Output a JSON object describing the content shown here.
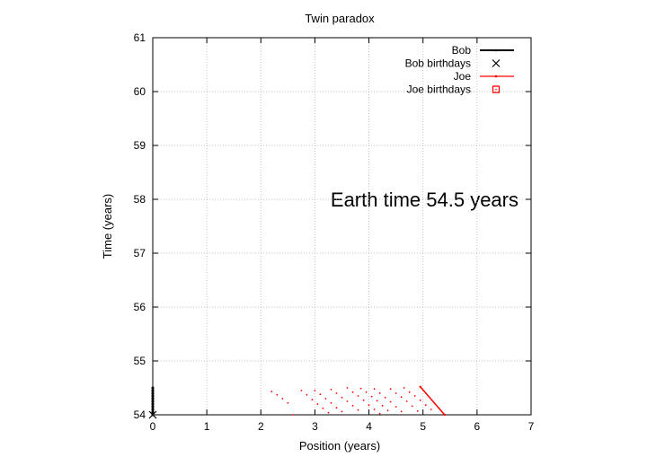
{
  "chart_data": {
    "type": "scatter",
    "title": "Twin paradox",
    "xlabel": "Position (years)",
    "ylabel": "Time (years)",
    "xlim": [
      0,
      7
    ],
    "ylim": [
      54,
      61
    ],
    "xticks": [
      0,
      1,
      2,
      3,
      4,
      5,
      6,
      7
    ],
    "yticks": [
      54,
      55,
      56,
      57,
      58,
      59,
      60,
      61
    ],
    "grid": true,
    "legend_position": "top-right",
    "annotation": "Earth time 54.5 years",
    "colors": {
      "bob": "#000000",
      "joe": "#ff0000",
      "grid": "#b0b0b0"
    },
    "series": [
      {
        "name": "Bob",
        "style": "line",
        "points": [
          [
            0,
            54.0
          ],
          [
            0,
            54.5
          ]
        ]
      },
      {
        "name": "Bob birthdays",
        "style": "cross",
        "points": [
          [
            0,
            54.0
          ]
        ]
      },
      {
        "name": "Joe",
        "style": "line",
        "points": [
          [
            4.95,
            54.52
          ],
          [
            5.4,
            54.0
          ]
        ]
      },
      {
        "name": "Joe birthdays",
        "style": "square",
        "points": []
      },
      {
        "name": "",
        "style": "dots",
        "points": [
          [
            2.2,
            54.43
          ],
          [
            2.3,
            54.37
          ],
          [
            2.4,
            54.3
          ],
          [
            2.5,
            54.22
          ],
          [
            2.6,
            54.0
          ],
          [
            2.75,
            54.45
          ],
          [
            2.85,
            54.37
          ],
          [
            2.95,
            54.28
          ],
          [
            3.05,
            54.2
          ],
          [
            3.15,
            54.12
          ],
          [
            3.25,
            54.04
          ],
          [
            3.0,
            54.45
          ],
          [
            3.1,
            54.38
          ],
          [
            3.2,
            54.3
          ],
          [
            3.3,
            54.22
          ],
          [
            3.4,
            54.13
          ],
          [
            3.5,
            54.06
          ],
          [
            3.3,
            54.47
          ],
          [
            3.4,
            54.4
          ],
          [
            3.5,
            54.32
          ],
          [
            3.6,
            54.25
          ],
          [
            3.7,
            54.17
          ],
          [
            3.8,
            54.09
          ],
          [
            3.6,
            54.5
          ],
          [
            3.7,
            54.42
          ],
          [
            3.8,
            54.35
          ],
          [
            3.9,
            54.27
          ],
          [
            4.0,
            54.18
          ],
          [
            4.1,
            54.1
          ],
          [
            4.2,
            54.02
          ],
          [
            3.85,
            54.49
          ],
          [
            3.95,
            54.42
          ],
          [
            4.05,
            54.34
          ],
          [
            4.15,
            54.26
          ],
          [
            4.25,
            54.17
          ],
          [
            4.35,
            54.08
          ],
          [
            4.1,
            54.48
          ],
          [
            4.2,
            54.4
          ],
          [
            4.3,
            54.32
          ],
          [
            4.4,
            54.24
          ],
          [
            4.5,
            54.15
          ],
          [
            4.6,
            54.06
          ],
          [
            4.4,
            54.48
          ],
          [
            4.5,
            54.4
          ],
          [
            4.6,
            54.33
          ],
          [
            4.7,
            54.25
          ],
          [
            4.8,
            54.16
          ],
          [
            4.9,
            54.07
          ],
          [
            4.65,
            54.5
          ],
          [
            4.75,
            54.42
          ],
          [
            4.85,
            54.35
          ],
          [
            4.95,
            54.27
          ],
          [
            5.05,
            54.18
          ],
          [
            5.15,
            54.1
          ]
        ]
      }
    ],
    "legend": [
      {
        "label": "Bob",
        "style": "line",
        "color": "#000000"
      },
      {
        "label": "Bob birthdays",
        "style": "cross",
        "color": "#000000"
      },
      {
        "label": "Joe",
        "style": "line",
        "color": "#ff0000"
      },
      {
        "label": "Joe birthdays",
        "style": "square",
        "color": "#ff0000"
      }
    ]
  }
}
